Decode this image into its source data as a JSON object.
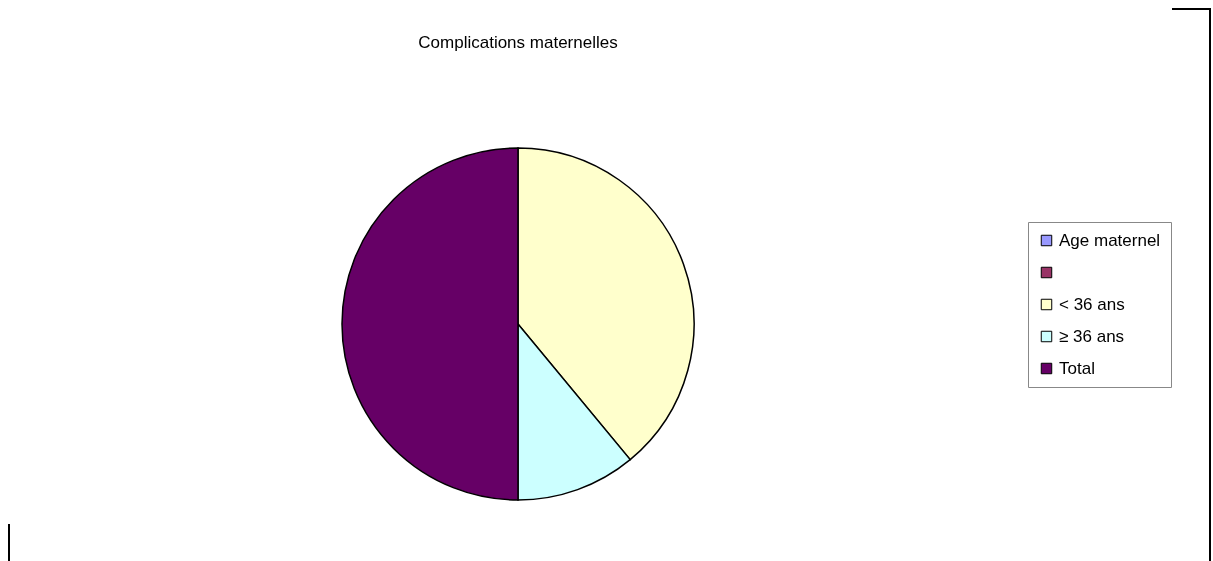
{
  "chart_data": {
    "type": "pie",
    "title": "Complications   maternelles",
    "categories": [
      "Age maternel",
      null,
      "< 36 ans",
      "≥ 36 ans",
      "Total"
    ],
    "values": [
      0,
      0,
      39,
      11,
      50
    ],
    "colors": [
      "#9999ff",
      "#993366",
      "#ffffcc",
      "#ccffff",
      "#660066"
    ],
    "legend": "right"
  }
}
